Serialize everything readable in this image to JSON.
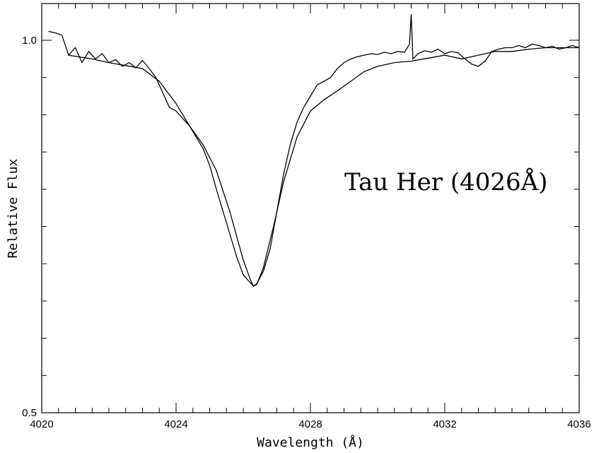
{
  "chart_data": {
    "type": "line",
    "title": "",
    "xlabel": "Wavelength (Å)",
    "ylabel": "Relative Flux",
    "xlim": [
      4020,
      4036
    ],
    "ylim": [
      0.5,
      1.05
    ],
    "xticks": [
      4020,
      4024,
      4028,
      4032,
      4036
    ],
    "xtick_labels": [
      "4020",
      "4024",
      "4028",
      "4032",
      "4036"
    ],
    "xminor_step": 0.5,
    "yticks": [
      0.5,
      1.0
    ],
    "ytick_labels": [
      "0.5",
      "1.0"
    ],
    "yminor_step": 0.05,
    "grid": false,
    "annotation": "Tau Her (4026Å)",
    "series": [
      {
        "style": "noisy",
        "x": [
          4020.2,
          4020.4,
          4020.6,
          4020.8,
          4021.0,
          4021.2,
          4021.4,
          4021.6,
          4021.8,
          4022.0,
          4022.2,
          4022.4,
          4022.6,
          4022.8,
          4023.0,
          4023.2,
          4023.4,
          4023.6,
          4023.8,
          4024.0,
          4024.2,
          4024.4,
          4024.6,
          4024.8,
          4025.0,
          4025.2,
          4025.4,
          4025.6,
          4025.8,
          4026.0,
          4026.2,
          4026.3,
          4026.4,
          4026.6,
          4026.8,
          4027.0,
          4027.2,
          4027.4,
          4027.6,
          4027.8,
          4028.0,
          4028.2,
          4028.4,
          4028.6,
          4028.8,
          4029.0,
          4029.2,
          4029.4,
          4029.6,
          4029.8,
          4030.0,
          4030.2,
          4030.4,
          4030.6,
          4030.8,
          4030.95,
          4031.0,
          4031.05,
          4031.2,
          4031.4,
          4031.6,
          4031.8,
          4032.0,
          4032.2,
          4032.4,
          4032.6,
          4032.8,
          4033.0,
          4033.2,
          4033.4,
          4033.6,
          4033.8,
          4034.0,
          4034.2,
          4034.4,
          4034.6,
          4034.8,
          4035.0,
          4035.2,
          4035.4,
          4035.6,
          4035.8,
          4036.0
        ],
        "y": [
          1.012,
          1.01,
          1.007,
          0.98,
          0.99,
          0.97,
          0.985,
          0.975,
          0.982,
          0.97,
          0.974,
          0.965,
          0.97,
          0.963,
          0.973,
          0.962,
          0.95,
          0.93,
          0.91,
          0.905,
          0.895,
          0.885,
          0.87,
          0.855,
          0.832,
          0.8,
          0.77,
          0.74,
          0.71,
          0.685,
          0.675,
          0.67,
          0.673,
          0.69,
          0.72,
          0.77,
          0.82,
          0.86,
          0.89,
          0.91,
          0.925,
          0.94,
          0.945,
          0.95,
          0.962,
          0.97,
          0.975,
          0.978,
          0.98,
          0.982,
          0.981,
          0.984,
          0.982,
          0.985,
          0.984,
          0.995,
          1.035,
          0.975,
          0.982,
          0.986,
          0.984,
          0.988,
          0.982,
          0.985,
          0.983,
          0.975,
          0.968,
          0.965,
          0.972,
          0.985,
          0.988,
          0.99,
          0.99,
          0.993,
          0.99,
          0.995,
          0.993,
          0.99,
          0.992,
          0.988,
          0.99,
          0.993,
          0.99
        ]
      },
      {
        "style": "smooth",
        "x": [
          4020.8,
          4021.5,
          4022.0,
          4022.5,
          4023.0,
          4023.5,
          4024.0,
          4024.4,
          4024.8,
          4025.2,
          4025.6,
          4026.0,
          4026.2,
          4026.3,
          4026.4,
          4026.6,
          4026.9,
          4027.2,
          4027.6,
          4028.0,
          4028.4,
          4028.8,
          4029.2,
          4029.6,
          4030.0,
          4030.5,
          4031.0,
          4031.5,
          4032.0,
          4032.5,
          4033.0,
          4033.5,
          4034.0,
          4034.5,
          4035.0,
          4035.5,
          4036.0
        ],
        "y": [
          0.98,
          0.975,
          0.97,
          0.966,
          0.962,
          0.945,
          0.915,
          0.885,
          0.86,
          0.825,
          0.77,
          0.705,
          0.68,
          0.67,
          0.672,
          0.695,
          0.75,
          0.81,
          0.87,
          0.905,
          0.92,
          0.932,
          0.945,
          0.958,
          0.965,
          0.97,
          0.972,
          0.976,
          0.98,
          0.975,
          0.98,
          0.985,
          0.985,
          0.988,
          0.99,
          0.99,
          0.99
        ]
      }
    ]
  }
}
